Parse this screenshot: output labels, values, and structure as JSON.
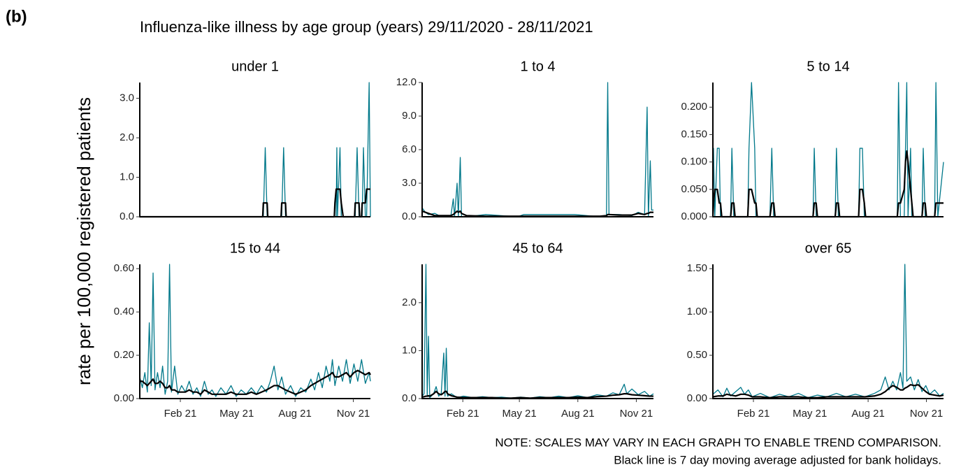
{
  "label": "(b)",
  "title": "Influenza-like illness by age group (years) 29/11/2020 - 28/11/2021",
  "ylabel": "rate per 100,000 registered patients",
  "notes": [
    "NOTE: SCALES MAY VARY IN EACH GRAPH TO ENABLE TREND COMPARISON.",
    "Black line is 7 day moving average adjusted for bank holidays."
  ],
  "chart_data": [
    {
      "type": "line",
      "title": "under 1",
      "x": [
        0,
        194,
        195,
        198,
        201,
        202,
        223,
        224,
        227,
        230,
        231,
        307,
        308,
        310,
        311,
        312,
        316,
        318,
        321,
        339,
        340,
        343,
        346,
        347,
        350,
        351,
        353,
        356,
        358,
        362,
        364
      ],
      "series": [
        {
          "color": "#00788a",
          "values": [
            0,
            0,
            0,
            1.75,
            0,
            0,
            0,
            0,
            1.75,
            0,
            0,
            0,
            0,
            0,
            1.75,
            0,
            1.75,
            0,
            0,
            0,
            0,
            1.75,
            0,
            0,
            0,
            0,
            1.75,
            0,
            0,
            3.4,
            0
          ]
        },
        {
          "color": "#000000",
          "values": [
            0,
            0,
            0.35,
            0.35,
            0.35,
            0,
            0,
            0.35,
            0.35,
            0.35,
            0,
            0,
            0.35,
            0.7,
            0.7,
            0.7,
            0.7,
            0.35,
            0,
            0,
            0.35,
            0.35,
            0.35,
            0,
            0,
            0.35,
            0.35,
            0.35,
            0.7,
            0.7,
            0.7
          ]
        }
      ],
      "xlim": [
        0,
        364
      ],
      "ylim": [
        0,
        3.4
      ],
      "yticks": [
        {
          "value": 0,
          "label": "0.0"
        },
        {
          "value": 1,
          "label": "1.0"
        },
        {
          "value": 2,
          "label": "2.0"
        },
        {
          "value": 3,
          "label": "3.0"
        }
      ]
    },
    {
      "type": "line",
      "title": "1 to 4",
      "x": [
        0,
        5,
        10,
        20,
        30,
        45,
        49,
        51,
        55,
        57,
        60,
        62,
        70,
        100,
        150,
        160,
        200,
        240,
        280,
        290,
        292,
        294,
        310,
        330,
        340,
        350,
        354,
        356,
        359,
        361,
        364
      ],
      "series": [
        {
          "color": "#00788a",
          "values": [
            0.8,
            0.4,
            0.2,
            0.3,
            0,
            0,
            1.6,
            0,
            3.0,
            0,
            5.3,
            0,
            0,
            0.2,
            0,
            0.2,
            0.2,
            0.2,
            0,
            0,
            12,
            0.2,
            0.2,
            0.1,
            0.4,
            0.2,
            9.8,
            0,
            5.0,
            0.6,
            0.6
          ]
        },
        {
          "color": "#000000",
          "values": [
            0.5,
            0.4,
            0.3,
            0.1,
            0.1,
            0.1,
            0.2,
            0.3,
            0.5,
            0.4,
            0.5,
            0.3,
            0.1,
            0.05,
            0.05,
            0.05,
            0.05,
            0.05,
            0.05,
            0.1,
            0.2,
            0.2,
            0.15,
            0.15,
            0.3,
            0.2,
            0.3,
            0.3,
            0.4,
            0.4,
            0.4
          ]
        }
      ],
      "xlim": [
        0,
        364
      ],
      "ylim": [
        0,
        12
      ],
      "yticks": [
        {
          "value": 0,
          "label": "0.0"
        },
        {
          "value": 3,
          "label": "3.0"
        },
        {
          "value": 6,
          "label": "6.0"
        },
        {
          "value": 9,
          "label": "9.0"
        },
        {
          "value": 12,
          "label": "12.0"
        }
      ]
    },
    {
      "type": "line",
      "title": "5 to 14",
      "x": [
        0,
        1,
        3,
        7,
        10,
        12,
        14,
        28,
        30,
        33,
        35,
        55,
        57,
        61,
        66,
        68,
        70,
        90,
        93,
        96,
        98,
        158,
        160,
        163,
        165,
        193,
        195,
        198,
        200,
        230,
        232,
        236,
        239,
        241,
        291,
        293,
        296,
        302,
        304,
        306,
        308,
        312,
        314,
        316,
        330,
        332,
        335,
        337,
        350,
        352,
        355,
        364
      ],
      "series": [
        {
          "color": "#00788a",
          "values": [
            0,
            0.125,
            0,
            0.125,
            0.125,
            0,
            0,
            0,
            0.125,
            0,
            0,
            0,
            0.125,
            0.245,
            0.125,
            0,
            0,
            0,
            0.125,
            0,
            0,
            0,
            0.125,
            0,
            0,
            0,
            0.125,
            0,
            0,
            0,
            0.125,
            0.125,
            0,
            0,
            0,
            0.245,
            0,
            0,
            0.125,
            0.245,
            0,
            0.125,
            0,
            0,
            0,
            0.125,
            0,
            0,
            0,
            0.245,
            0,
            0.1
          ]
        },
        {
          "color": "#000000",
          "values": [
            0,
            0.025,
            0.05,
            0.05,
            0.025,
            0.025,
            0,
            0,
            0.025,
            0.025,
            0,
            0,
            0.05,
            0.05,
            0.025,
            0.025,
            0,
            0,
            0.025,
            0.025,
            0,
            0,
            0.025,
            0.025,
            0,
            0,
            0.025,
            0.025,
            0,
            0,
            0.05,
            0.05,
            0.025,
            0,
            0,
            0.025,
            0.025,
            0.05,
            0.1,
            0.12,
            0.1,
            0.05,
            0.025,
            0,
            0,
            0.025,
            0.025,
            0,
            0,
            0.025,
            0.025,
            0.025
          ]
        }
      ],
      "xlim": [
        0,
        364
      ],
      "ylim": [
        0,
        0.245
      ],
      "yticks": [
        {
          "value": 0,
          "label": "0.000"
        },
        {
          "value": 0.05,
          "label": "0.050"
        },
        {
          "value": 0.1,
          "label": "0.100"
        },
        {
          "value": 0.15,
          "label": "0.150"
        },
        {
          "value": 0.2,
          "label": "0.200"
        }
      ]
    },
    {
      "type": "line",
      "title": "15 to 44",
      "x": [
        0,
        4,
        8,
        12,
        15,
        18,
        21,
        24,
        28,
        32,
        36,
        40,
        44,
        47,
        50,
        55,
        60,
        66,
        72,
        78,
        84,
        90,
        96,
        102,
        108,
        114,
        120,
        128,
        136,
        144,
        152,
        160,
        168,
        176,
        184,
        192,
        200,
        206,
        212,
        218,
        224,
        230,
        238,
        246,
        254,
        262,
        270,
        276,
        282,
        288,
        294,
        300,
        304,
        308,
        314,
        320,
        326,
        332,
        338,
        344,
        350,
        356,
        362,
        364
      ],
      "series": [
        {
          "color": "#00788a",
          "values": [
            0.1,
            0.05,
            0.12,
            0.03,
            0.35,
            0.06,
            0.58,
            0.04,
            0.12,
            0.05,
            0.15,
            0.02,
            0.08,
            0.62,
            0.03,
            0.15,
            0.02,
            0.06,
            0.03,
            0.08,
            0.02,
            0.05,
            0.01,
            0.08,
            0.02,
            0.04,
            0.01,
            0.05,
            0.02,
            0.06,
            0.01,
            0.04,
            0.02,
            0.05,
            0.02,
            0.06,
            0.03,
            0.08,
            0.15,
            0.04,
            0.1,
            0.02,
            0.06,
            0.01,
            0.05,
            0.03,
            0.09,
            0.04,
            0.12,
            0.05,
            0.15,
            0.08,
            0.18,
            0.06,
            0.15,
            0.08,
            0.18,
            0.07,
            0.16,
            0.08,
            0.18,
            0.07,
            0.12,
            0.08
          ]
        },
        {
          "color": "#000000",
          "values": [
            0.08,
            0.08,
            0.07,
            0.06,
            0.07,
            0.08,
            0.09,
            0.07,
            0.07,
            0.08,
            0.07,
            0.05,
            0.05,
            0.06,
            0.04,
            0.04,
            0.03,
            0.03,
            0.03,
            0.04,
            0.03,
            0.03,
            0.02,
            0.04,
            0.03,
            0.02,
            0.02,
            0.02,
            0.02,
            0.03,
            0.02,
            0.02,
            0.02,
            0.03,
            0.02,
            0.03,
            0.04,
            0.05,
            0.06,
            0.06,
            0.05,
            0.04,
            0.03,
            0.02,
            0.03,
            0.04,
            0.06,
            0.07,
            0.08,
            0.09,
            0.1,
            0.11,
            0.12,
            0.1,
            0.1,
            0.11,
            0.12,
            0.1,
            0.12,
            0.13,
            0.12,
            0.11,
            0.12,
            0.11
          ]
        }
      ],
      "xlim": [
        0,
        364
      ],
      "ylim": [
        0,
        0.62
      ],
      "xticks": [
        {
          "value": 64,
          "label": "Feb 21"
        },
        {
          "value": 153,
          "label": "May 21"
        },
        {
          "value": 245,
          "label": "Aug 21"
        },
        {
          "value": 337,
          "label": "Nov 21"
        }
      ],
      "yticks": [
        {
          "value": 0,
          "label": "0.00"
        },
        {
          "value": 0.2,
          "label": "0.20"
        },
        {
          "value": 0.4,
          "label": "0.40"
        },
        {
          "value": 0.6,
          "label": "0.60"
        }
      ]
    },
    {
      "type": "line",
      "title": "45 to 64",
      "x": [
        0,
        3,
        6,
        8,
        10,
        12,
        18,
        22,
        26,
        30,
        34,
        36,
        38,
        40,
        46,
        55,
        65,
        80,
        95,
        110,
        125,
        140,
        155,
        170,
        185,
        200,
        215,
        230,
        245,
        260,
        275,
        290,
        300,
        310,
        318,
        322,
        330,
        340,
        350,
        358,
        364
      ],
      "series": [
        {
          "color": "#00788a",
          "values": [
            0.05,
            0.1,
            2.8,
            0.05,
            1.3,
            0.02,
            0.1,
            0.25,
            0.05,
            0.1,
            0.95,
            0.05,
            1.05,
            0.05,
            0.1,
            0.02,
            0.05,
            0.02,
            0.04,
            0.02,
            0.03,
            0.01,
            0.03,
            0.01,
            0.04,
            0.02,
            0.05,
            0.02,
            0.06,
            0.02,
            0.08,
            0.05,
            0.12,
            0.08,
            0.3,
            0.1,
            0.2,
            0.08,
            0.15,
            0.05,
            0.1
          ]
        },
        {
          "color": "#000000",
          "values": [
            0.03,
            0.04,
            0.05,
            0.05,
            0.06,
            0.05,
            0.1,
            0.15,
            0.1,
            0.08,
            0.12,
            0.15,
            0.15,
            0.1,
            0.06,
            0.03,
            0.02,
            0.02,
            0.02,
            0.02,
            0.01,
            0.01,
            0.02,
            0.01,
            0.02,
            0.02,
            0.02,
            0.02,
            0.03,
            0.02,
            0.04,
            0.05,
            0.07,
            0.08,
            0.1,
            0.1,
            0.08,
            0.07,
            0.06,
            0.05,
            0.05
          ]
        }
      ],
      "xlim": [
        0,
        364
      ],
      "ylim": [
        0,
        2.8
      ],
      "xticks": [
        {
          "value": 64,
          "label": "Feb 21"
        },
        {
          "value": 153,
          "label": "May 21"
        },
        {
          "value": 245,
          "label": "Aug 21"
        },
        {
          "value": 337,
          "label": "Nov 21"
        }
      ],
      "yticks": [
        {
          "value": 0,
          "label": "0.0"
        },
        {
          "value": 1,
          "label": "1.0"
        },
        {
          "value": 2,
          "label": "2.0"
        }
      ]
    },
    {
      "type": "line",
      "title": "over 65",
      "x": [
        0,
        8,
        16,
        22,
        28,
        36,
        44,
        50,
        56,
        62,
        75,
        90,
        105,
        120,
        135,
        150,
        165,
        180,
        195,
        210,
        225,
        240,
        255,
        265,
        272,
        278,
        284,
        290,
        296,
        300,
        303,
        306,
        312,
        318,
        324,
        330,
        336,
        342,
        350,
        358,
        364
      ],
      "series": [
        {
          "color": "#00788a",
          "values": [
            0.05,
            0.1,
            0.02,
            0.12,
            0.03,
            0.08,
            0.13,
            0.05,
            0.1,
            0.02,
            0.06,
            0.01,
            0.05,
            0.02,
            0.06,
            0.01,
            0.04,
            0.02,
            0.06,
            0.02,
            0.05,
            0.02,
            0.06,
            0.1,
            0.25,
            0.1,
            0.2,
            0.1,
            0.3,
            0.12,
            1.55,
            0.2,
            0.25,
            0.1,
            0.22,
            0.08,
            0.15,
            0.05,
            0.1,
            0.03,
            0.06
          ]
        },
        {
          "color": "#000000",
          "values": [
            0.02,
            0.03,
            0.03,
            0.05,
            0.04,
            0.03,
            0.05,
            0.05,
            0.04,
            0.02,
            0.02,
            0.01,
            0.02,
            0.02,
            0.02,
            0.01,
            0.01,
            0.02,
            0.02,
            0.02,
            0.02,
            0.02,
            0.03,
            0.05,
            0.08,
            0.12,
            0.15,
            0.13,
            0.1,
            0.1,
            0.12,
            0.13,
            0.16,
            0.15,
            0.16,
            0.12,
            0.08,
            0.05,
            0.04,
            0.03,
            0.04
          ]
        }
      ],
      "xlim": [
        0,
        364
      ],
      "ylim": [
        0,
        1.55
      ],
      "xticks": [
        {
          "value": 64,
          "label": "Feb 21"
        },
        {
          "value": 153,
          "label": "May 21"
        },
        {
          "value": 245,
          "label": "Aug 21"
        },
        {
          "value": 337,
          "label": "Nov 21"
        }
      ],
      "yticks": [
        {
          "value": 0,
          "label": "0.00"
        },
        {
          "value": 0.5,
          "label": "0.50"
        },
        {
          "value": 1,
          "label": "1.00"
        },
        {
          "value": 1.5,
          "label": "1.50"
        }
      ]
    }
  ]
}
